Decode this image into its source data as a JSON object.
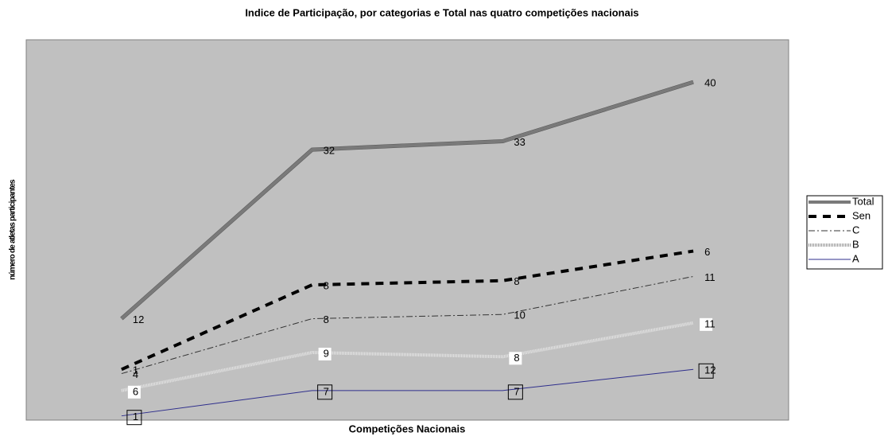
{
  "chart_data": {
    "type": "line",
    "stacked": true,
    "title": "Indice de Participação, por categorias e Total nas quatro competições nacionais",
    "x_label": "Competições Nacionais",
    "y_label": "número de atletas participantes",
    "categories": [
      null,
      null,
      null,
      null
    ],
    "ylim": [
      0,
      90
    ],
    "legend": "right",
    "series": [
      {
        "name": "A",
        "color": "#2e2e8c",
        "values": [
          1,
          7,
          7,
          12
        ]
      },
      {
        "name": "B",
        "color": "#e6e6e6",
        "values": [
          6,
          9,
          8,
          11
        ]
      },
      {
        "name": "C",
        "color": "#333333",
        "values": [
          4,
          8,
          10,
          11
        ]
      },
      {
        "name": "Sen",
        "color": "#000000",
        "values": [
          1,
          8,
          8,
          6
        ]
      },
      {
        "name": "Total",
        "color": "#7a7a7a",
        "values": [
          12,
          32,
          33,
          40
        ]
      }
    ]
  }
}
